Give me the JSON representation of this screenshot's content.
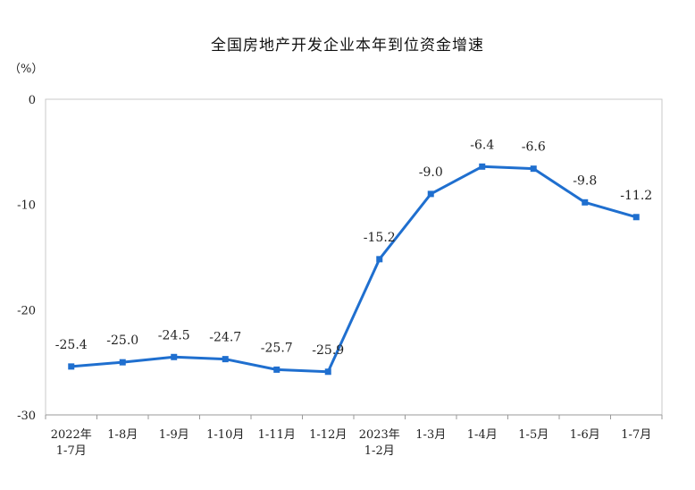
{
  "chart_data": {
    "type": "line",
    "title": "全国房地产开发企业本年到位资金增速",
    "ylabel": "（%）",
    "ylim": [
      -30,
      0
    ],
    "yticks": [
      0,
      -10,
      -20,
      -30
    ],
    "categories": [
      [
        "2022年",
        "1-7月"
      ],
      [
        "1-8月"
      ],
      [
        "1-9月"
      ],
      [
        "1-10月"
      ],
      [
        "1-11月"
      ],
      [
        "1-12月"
      ],
      [
        "2023年",
        "1-2月"
      ],
      [
        "1-3月"
      ],
      [
        "1-4月"
      ],
      [
        "1-5月"
      ],
      [
        "1-6月"
      ],
      [
        "1-7月"
      ]
    ],
    "series": [
      {
        "values": [
          -25.4,
          -25.0,
          -24.5,
          -24.7,
          -25.7,
          -25.9,
          -15.2,
          -9.0,
          -6.4,
          -6.6,
          -9.8,
          -11.2
        ],
        "labels": [
          "-25.4",
          "-25.0",
          "-24.5",
          "-24.7",
          "-25.7",
          "-25.9",
          "-15.2",
          "-9.0",
          "-6.4",
          "-6.6",
          "-9.8",
          "-11.2"
        ],
        "color": "#1f6fcf"
      }
    ],
    "grid": false,
    "legend": "none"
  }
}
